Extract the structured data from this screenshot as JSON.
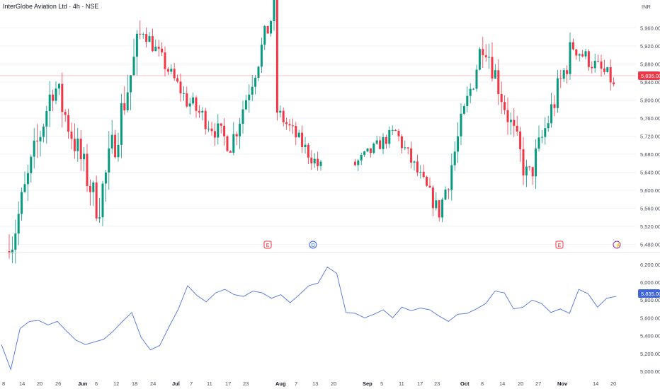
{
  "header": {
    "title": "InterGlobe Aviation Ltd · 4h · NSE"
  },
  "colors": {
    "up": "#089981",
    "down": "#f23645",
    "line": "#4f72e0",
    "last_price_bg": "#f23645",
    "line_last_bg": "#3d63dd"
  },
  "chart_data": [
    {
      "type": "candlestick",
      "currency_label": "INR",
      "last_price": 5835,
      "last_price_label": "5,835.00",
      "y_ticks": [
        "5,960.00",
        "5,920.00",
        "5,880.00",
        "5,840.00",
        "5,800.00",
        "5,760.00",
        "5,720.00",
        "5,680.00",
        "5,640.00",
        "5,600.00",
        "5,560.00",
        "5,520.00",
        "5,480.00"
      ],
      "y_tick_values": [
        5960,
        5920,
        5880,
        5840,
        5800,
        5760,
        5720,
        5680,
        5640,
        5600,
        5560,
        5520,
        5480
      ],
      "ylim": [
        5465,
        6000
      ],
      "markers": [
        "E",
        "D",
        "E",
        "⚡"
      ],
      "segments": [
        {
          "open": 5465,
          "close": 5840,
          "min": 5460,
          "max": 5880,
          "volatility": 0.55
        },
        {
          "open": 5840,
          "close": 5560,
          "min": 5470,
          "max": 5860,
          "volatility": 0.55
        },
        {
          "open": 5560,
          "close": 5960,
          "min": 5540,
          "max": 5990,
          "volatility": 0.55
        },
        {
          "open": 5960,
          "close": 5800,
          "min": 5740,
          "max": 5970,
          "volatility": 0.45
        },
        {
          "open": 5800,
          "close": 5700,
          "min": 5610,
          "max": 5900,
          "volatility": 0.45
        },
        {
          "open": 5700,
          "close": 6010,
          "min": 5680,
          "max": 6040,
          "volatility": 0.45
        },
        {
          "open": 5780,
          "close": 5650,
          "min": 5610,
          "max": 5840,
          "volatility": 0.45
        },
        {
          "open": 5650,
          "close": 5730,
          "min": 5590,
          "max": 5780,
          "volatility": 0.45
        },
        {
          "open": 5730,
          "close": 5550,
          "min": 5510,
          "max": 5750,
          "volatility": 0.45
        },
        {
          "open": 5550,
          "close": 5940,
          "min": 5540,
          "max": 5950,
          "volatility": 0.45
        },
        {
          "open": 5940,
          "close": 5620,
          "min": 5580,
          "max": 5950,
          "volatility": 0.5
        },
        {
          "open": 5620,
          "close": 5920,
          "min": 5560,
          "max": 5935,
          "volatility": 0.5
        },
        {
          "open": 5920,
          "close": 5835,
          "min": 5700,
          "max": 5930,
          "volatility": 0.5
        }
      ]
    },
    {
      "type": "line",
      "last_value": 5835,
      "last_value_label": "5,835.00",
      "y_ticks": [
        "6,200.00",
        "6,000.00",
        "5,800.00",
        "5,600.00",
        "5,400.00",
        "5,200.00",
        "5,000.00"
      ],
      "y_tick_values": [
        6200,
        6000,
        5800,
        5600,
        5400,
        5200,
        5000
      ],
      "ylim": [
        4960,
        6230
      ],
      "values": [
        5300,
        5020,
        5480,
        5560,
        5570,
        5520,
        5560,
        5450,
        5350,
        5300,
        5330,
        5360,
        5450,
        5560,
        5660,
        5380,
        5240,
        5290,
        5500,
        5700,
        5960,
        5850,
        5780,
        5880,
        5920,
        5860,
        5840,
        5900,
        5880,
        5820,
        5860,
        5770,
        5860,
        5960,
        5990,
        6170,
        6100,
        5660,
        5650,
        5600,
        5640,
        5690,
        5600,
        5720,
        5680,
        5710,
        5690,
        5620,
        5560,
        5640,
        5650,
        5700,
        5760,
        5900,
        5880,
        5700,
        5720,
        5800,
        5760,
        5660,
        5700,
        5650,
        5920,
        5870,
        5720,
        5820,
        5840
      ]
    }
  ],
  "x_axis": {
    "labels": [
      "8",
      "14",
      "20",
      "26",
      "Jun",
      "6",
      "12",
      "18",
      "24",
      "Jul",
      "7",
      "11",
      "17",
      "23",
      "Aug",
      "7",
      "13",
      "20",
      "Sep",
      "5",
      "11",
      "17",
      "23",
      "Oct",
      "8",
      "14",
      "20",
      "27",
      "Nov",
      "14",
      "20"
    ]
  }
}
